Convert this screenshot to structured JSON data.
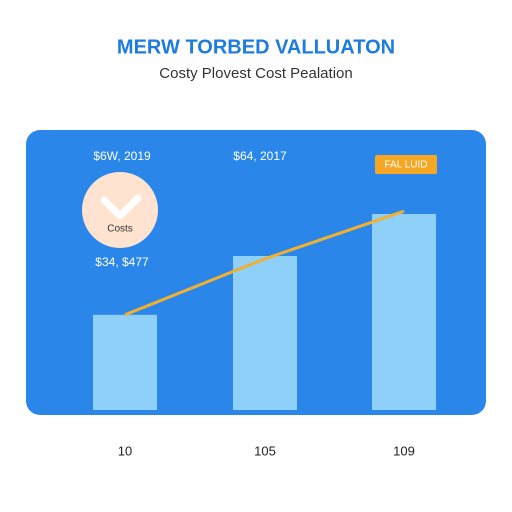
{
  "chart_data": {
    "type": "bar",
    "title": "MERW TORBED VALLUATON",
    "subtitle": "Costy Plovest Cost Pealation",
    "categories": [
      "10",
      "105",
      "109"
    ],
    "values": [
      34,
      55,
      70
    ],
    "color": "#8fd0f8",
    "series": [
      {
        "type": "line",
        "color": "#f0b030",
        "values": [
          34,
          54,
          71
        ]
      }
    ],
    "ylim": [
      0,
      100
    ],
    "annotations": [
      "$6W, 2019",
      "$64, 2017",
      "FAL LUID",
      "Costs",
      "$34, $477"
    ]
  }
}
